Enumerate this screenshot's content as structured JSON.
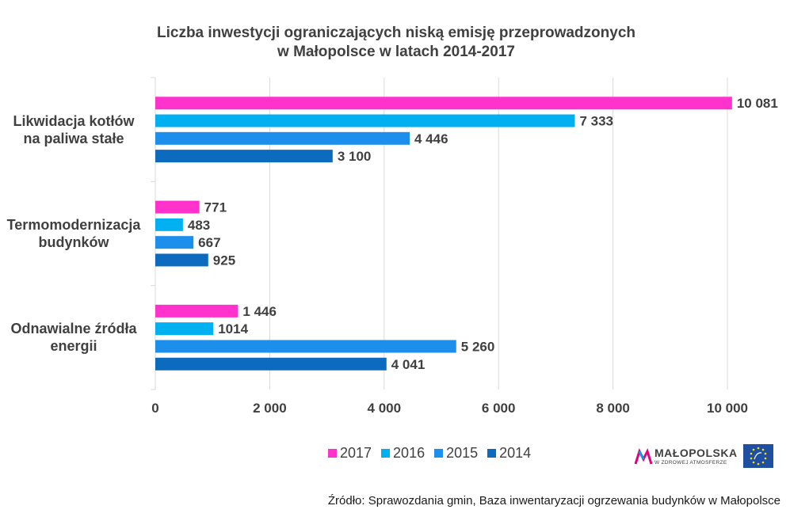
{
  "title_lines": [
    "Liczba inwestycji  ograniczających niską emisję przeprowadzonych",
    "w Małopolsce w latach 2014-2017"
  ],
  "chart_data": {
    "type": "bar",
    "orientation": "horizontal",
    "categories": [
      [
        "Likwidacja kotłów",
        "na paliwa stałe"
      ],
      [
        "Termomodernizacja",
        "budynków"
      ],
      [
        "Odnawialne źródła",
        "energii"
      ]
    ],
    "series": [
      {
        "name": "2017",
        "color": "#ff33cc",
        "values": [
          10081,
          771,
          1446
        ],
        "labels": [
          "10 081",
          "771",
          "1 446"
        ]
      },
      {
        "name": "2016",
        "color": "#00b0f0",
        "values": [
          7333,
          483,
          1014
        ],
        "labels": [
          "7 333",
          "483",
          "1014"
        ]
      },
      {
        "name": "2015",
        "color": "#1c8eec",
        "values": [
          4446,
          667,
          5260
        ],
        "labels": [
          "4 446",
          "667",
          "5 260"
        ]
      },
      {
        "name": "2014",
        "color": "#0d6bbf",
        "values": [
          3100,
          925,
          4041
        ],
        "labels": [
          "3 100",
          "925",
          "4 041"
        ]
      }
    ],
    "xlim": [
      0,
      10000
    ],
    "x_ticks": [
      0,
      2000,
      4000,
      6000,
      8000,
      10000
    ],
    "x_tick_labels": [
      "0",
      "2 000",
      "4 000",
      "6 000",
      "8 000",
      "10 000"
    ],
    "grid": true,
    "legend_position": "bottom"
  },
  "logo": {
    "name": "MAŁOPOLSKA",
    "tagline": "W ZDROWEJ ATMOSFERZE"
  },
  "source": "Źródło: Sprawozdania  gmin, Baza inwentaryzacji ogrzewania budynków w Małopolsce"
}
